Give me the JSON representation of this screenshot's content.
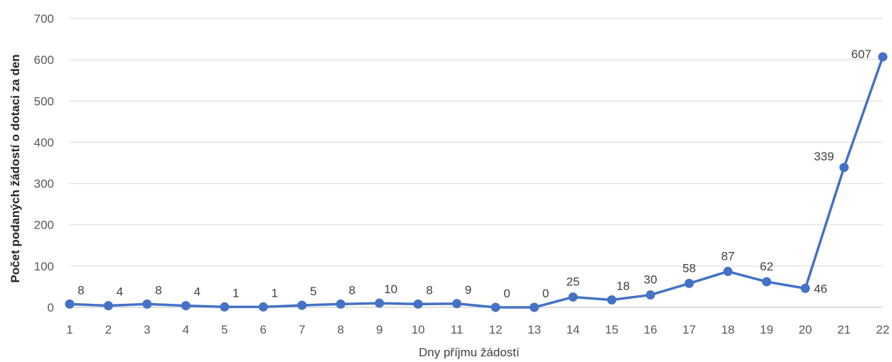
{
  "colors": {
    "series": "#4472c4",
    "grid": "#d9d9d9",
    "axis": "#bfbfbf"
  },
  "chart_data": {
    "type": "line",
    "title": "",
    "xlabel": "Dny příjmu žádostí",
    "ylabel": "Počet podaných žádostí o dotaci za den",
    "x": [
      "1",
      "2",
      "3",
      "4",
      "5",
      "6",
      "7",
      "8",
      "9",
      "10",
      "11",
      "12",
      "13",
      "14",
      "15",
      "16",
      "17",
      "18",
      "19",
      "20",
      "21",
      "22"
    ],
    "series": [
      {
        "values": [
          8,
          4,
          8,
          4,
          1,
          1,
          5,
          8,
          10,
          8,
          9,
          0,
          0,
          25,
          18,
          30,
          58,
          87,
          62,
          46,
          339,
          607
        ]
      }
    ],
    "ylim": [
      0,
      700
    ],
    "yticks": [
      0,
      100,
      200,
      300,
      400,
      500,
      600,
      700
    ],
    "grid": true,
    "markers": true,
    "data_labels": true
  }
}
